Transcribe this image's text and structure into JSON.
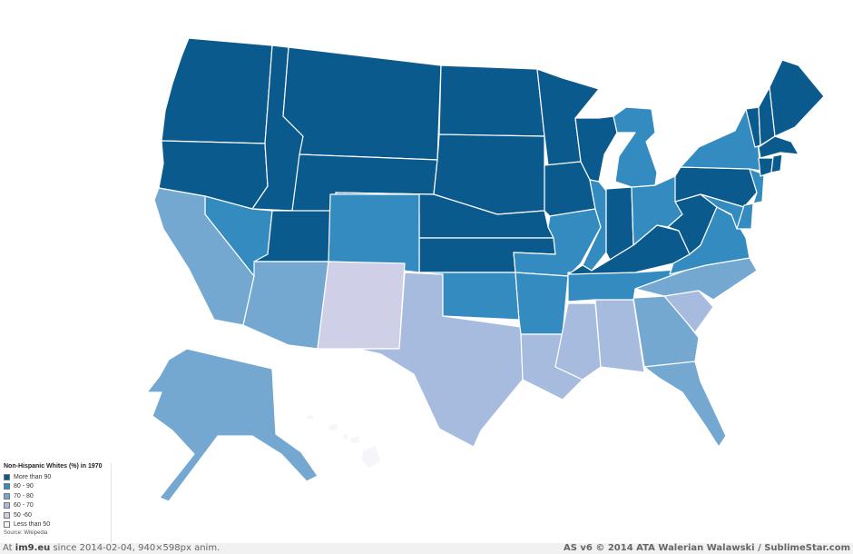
{
  "legend": {
    "title": "Non-Hispanic Whites (%) in 1970",
    "items": [
      {
        "label": "More than 90",
        "color": "#0b5a8e"
      },
      {
        "label": "80 - 90",
        "color": "#338bc0"
      },
      {
        "label": "70 - 80",
        "color": "#74a8d0"
      },
      {
        "label": "60 - 70",
        "color": "#a6bbde"
      },
      {
        "label": "50 -60",
        "color": "#d0cfe8"
      },
      {
        "label": "Less than 50",
        "color": "#f6f6fa"
      }
    ],
    "source": "Source: Wikipedia"
  },
  "footer": {
    "left_prefix": "At ",
    "left_site": "im9.eu",
    "left_rest": " since 2014-02-04, 940×598px anim.",
    "right": "AS v6 © 2014 ATA Walerian Walawski / SublimeStar.com"
  },
  "states": [
    {
      "code": "WA",
      "bin": "More than 90"
    },
    {
      "code": "OR",
      "bin": "More than 90"
    },
    {
      "code": "ID",
      "bin": "More than 90"
    },
    {
      "code": "MT",
      "bin": "More than 90"
    },
    {
      "code": "WY",
      "bin": "More than 90"
    },
    {
      "code": "ND",
      "bin": "More than 90"
    },
    {
      "code": "SD",
      "bin": "More than 90"
    },
    {
      "code": "NE",
      "bin": "More than 90"
    },
    {
      "code": "KS",
      "bin": "More than 90"
    },
    {
      "code": "MN",
      "bin": "More than 90"
    },
    {
      "code": "IA",
      "bin": "More than 90"
    },
    {
      "code": "WI",
      "bin": "More than 90"
    },
    {
      "code": "UT",
      "bin": "More than 90"
    },
    {
      "code": "IN",
      "bin": "More than 90"
    },
    {
      "code": "KY",
      "bin": "More than 90"
    },
    {
      "code": "WV",
      "bin": "More than 90"
    },
    {
      "code": "PA",
      "bin": "More than 90"
    },
    {
      "code": "ME",
      "bin": "More than 90"
    },
    {
      "code": "NH",
      "bin": "More than 90"
    },
    {
      "code": "VT",
      "bin": "More than 90"
    },
    {
      "code": "MA",
      "bin": "More than 90"
    },
    {
      "code": "RI",
      "bin": "More than 90"
    },
    {
      "code": "CT",
      "bin": "More than 90"
    },
    {
      "code": "NV",
      "bin": "80 - 90"
    },
    {
      "code": "CO",
      "bin": "80 - 90"
    },
    {
      "code": "OK",
      "bin": "80 - 90"
    },
    {
      "code": "MO",
      "bin": "80 - 90"
    },
    {
      "code": "AR",
      "bin": "80 - 90"
    },
    {
      "code": "IL",
      "bin": "80 - 90"
    },
    {
      "code": "MI",
      "bin": "80 - 90"
    },
    {
      "code": "OH",
      "bin": "80 - 90"
    },
    {
      "code": "NY",
      "bin": "80 - 90"
    },
    {
      "code": "NJ",
      "bin": "80 - 90"
    },
    {
      "code": "DE",
      "bin": "80 - 90"
    },
    {
      "code": "MD",
      "bin": "80 - 90"
    },
    {
      "code": "VA",
      "bin": "80 - 90"
    },
    {
      "code": "TN",
      "bin": "80 - 90"
    },
    {
      "code": "CA",
      "bin": "70 - 80"
    },
    {
      "code": "AZ",
      "bin": "70 - 80"
    },
    {
      "code": "NC",
      "bin": "70 - 80"
    },
    {
      "code": "GA",
      "bin": "70 - 80"
    },
    {
      "code": "FL",
      "bin": "70 - 80"
    },
    {
      "code": "AK",
      "bin": "70 - 80"
    },
    {
      "code": "TX",
      "bin": "60 - 70"
    },
    {
      "code": "LA",
      "bin": "60 - 70"
    },
    {
      "code": "MS",
      "bin": "60 - 70"
    },
    {
      "code": "AL",
      "bin": "60 - 70"
    },
    {
      "code": "SC",
      "bin": "60 - 70"
    },
    {
      "code": "NM",
      "bin": "50 -60"
    },
    {
      "code": "HI",
      "bin": "Less than 50"
    }
  ]
}
